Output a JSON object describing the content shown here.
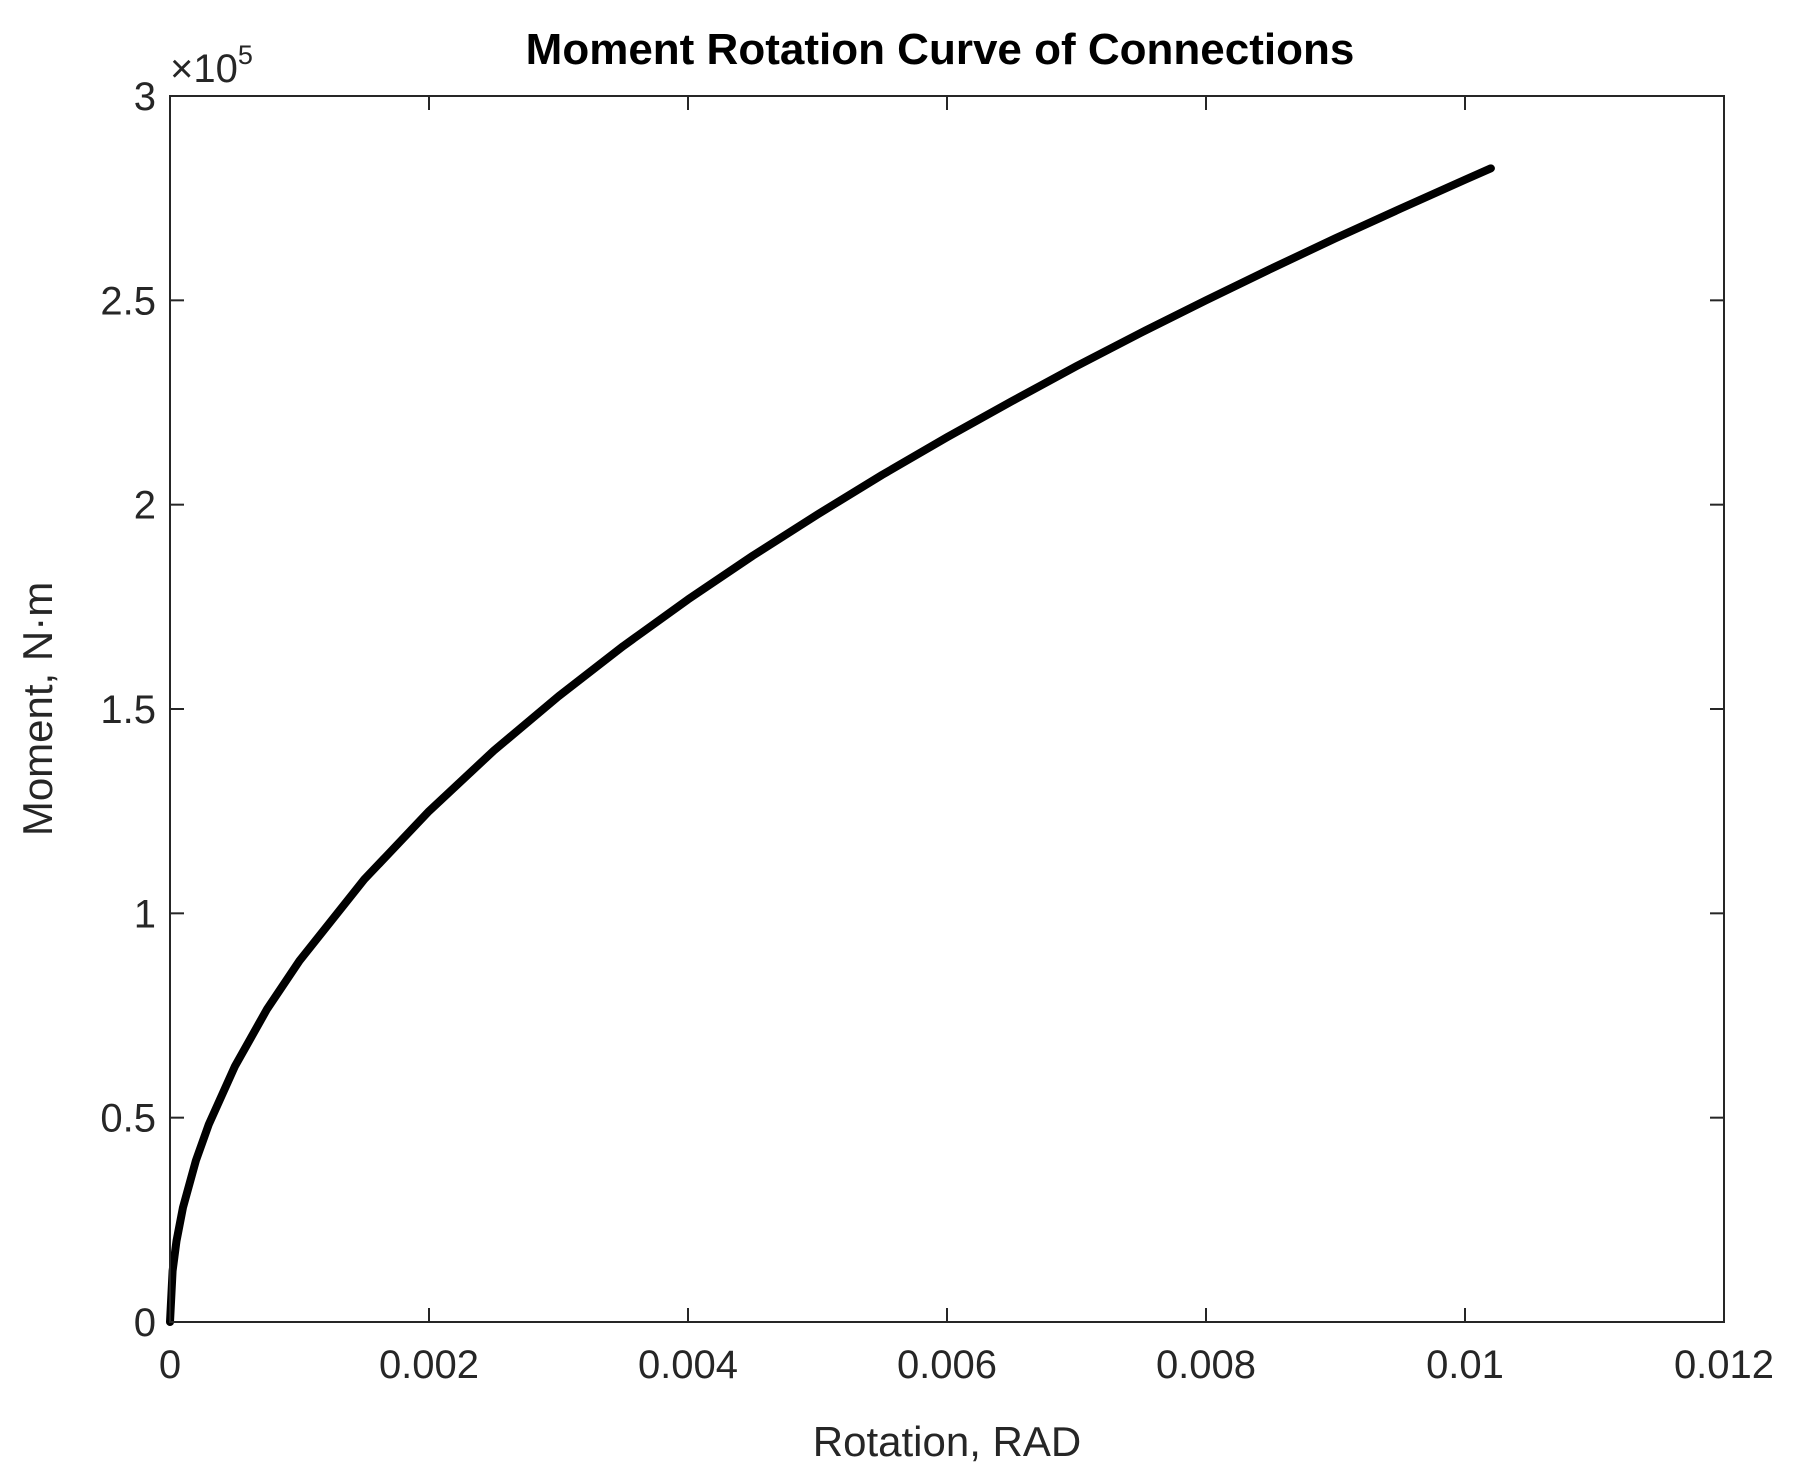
{
  "chart_data": {
    "type": "line",
    "title": "Moment Rotation Curve of Connections",
    "xlabel": "Rotation, RAD",
    "ylabel": "Moment,  N·m",
    "xlim": [
      0,
      0.012
    ],
    "ylim": [
      0,
      300000
    ],
    "y_exponent_label": {
      "prefix": "×10",
      "power": "5"
    },
    "x_ticks": [
      0,
      0.002,
      0.004,
      0.006,
      0.008,
      0.01,
      0.012
    ],
    "x_tick_labels": [
      "0",
      "0.002",
      "0.004",
      "0.006",
      "0.008",
      "0.01",
      "0.012"
    ],
    "y_ticks": [
      0,
      50000,
      100000,
      150000,
      200000,
      250000,
      300000
    ],
    "y_tick_labels": [
      "0",
      "0.5",
      "1",
      "1.5",
      "2",
      "2.5",
      "3"
    ],
    "grid": false,
    "line_color": "#000000",
    "series": [
      {
        "x": [
          0,
          2e-05,
          5e-05,
          0.0001,
          0.0002,
          0.0003,
          0.0005,
          0.00075,
          0.001,
          0.0015,
          0.002,
          0.0025,
          0.003,
          0.0035,
          0.004,
          0.0045,
          0.005,
          0.0055,
          0.006,
          0.0065,
          0.007,
          0.0075,
          0.008,
          0.0085,
          0.009,
          0.0095,
          0.01,
          0.0102
        ],
        "y": [
          0,
          12500,
          19800,
          28000,
          39500,
          48400,
          62500,
          76600,
          88400,
          108300,
          125000,
          139800,
          153100,
          165400,
          176800,
          187500,
          197600,
          207300,
          216500,
          225300,
          233900,
          242100,
          250000,
          257700,
          265200,
          272400,
          279500,
          282300
        ]
      }
    ]
  }
}
